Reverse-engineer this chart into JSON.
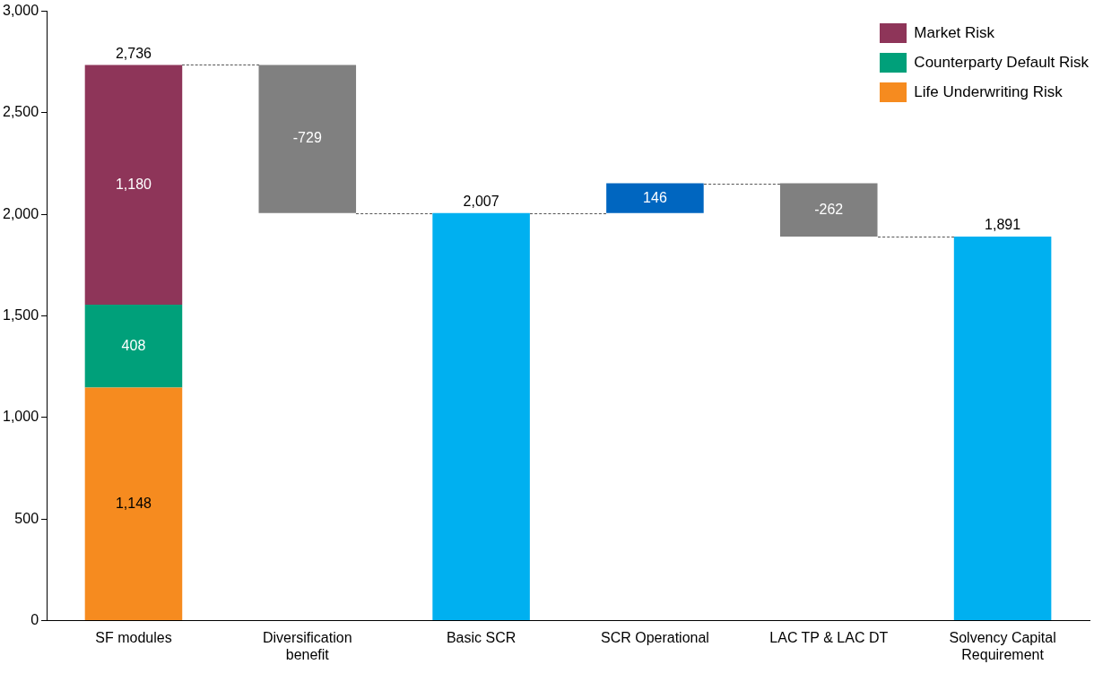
{
  "chart_data": {
    "type": "bar",
    "stacked": true,
    "categories": [
      "SF modules",
      "Diversification benefit",
      "Basic SCR",
      "SCR Operational",
      "LAC TP & LAC DT",
      "Solvency Capital Requirement"
    ],
    "series": [
      {
        "name": "Life Underwriting Risk",
        "color": "#f68b1f",
        "values": [
          1148,
          null,
          null,
          null,
          null,
          null
        ],
        "value_labels": [
          "1,148",
          null,
          null,
          null,
          null,
          null
        ]
      },
      {
        "name": "Counterparty Default Risk",
        "color": "#00a07a",
        "values": [
          408,
          null,
          null,
          null,
          null,
          null
        ],
        "value_labels": [
          "408",
          null,
          null,
          null,
          null,
          null
        ]
      },
      {
        "name": "Market Risk",
        "color": "#8e3559",
        "values": [
          1180,
          null,
          null,
          null,
          null,
          null
        ],
        "value_labels": [
          "1,180",
          null,
          null,
          null,
          null,
          null
        ]
      },
      {
        "colors": [
          null,
          "#808080",
          "#00b0f0",
          "#0066c0",
          "#808080",
          "#00b0f0"
        ],
        "values": [
          null,
          -729,
          2007,
          146,
          -262,
          1891
        ],
        "base": [
          null,
          2736,
          0,
          2007,
          2153,
          0
        ],
        "value_labels": [
          null,
          "-729",
          "2,007",
          "146",
          "-262",
          "1,891"
        ]
      }
    ],
    "totals": [
      "2,736",
      null,
      null,
      null,
      null,
      null
    ],
    "ylim": [
      0,
      3000
    ],
    "yticks": [
      {
        "value": 0,
        "label": "0"
      },
      {
        "value": 500,
        "label": "500"
      },
      {
        "value": 1000,
        "label": "1,000"
      },
      {
        "value": 1500,
        "label": "1,500"
      },
      {
        "value": 2000,
        "label": "2,000"
      },
      {
        "value": 2500,
        "label": "2,500"
      },
      {
        "value": 3000,
        "label": "3,000"
      }
    ],
    "grid": false,
    "legend": "top right"
  }
}
